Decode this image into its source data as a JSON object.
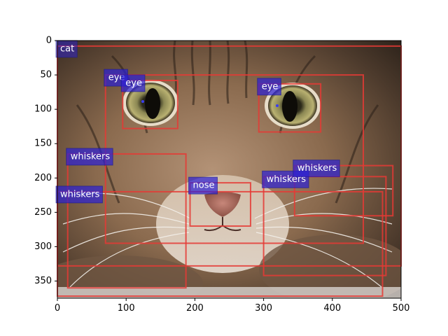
{
  "chart_data": {
    "type": "image-annotation",
    "image_subject": "tabby cat face close-up",
    "xlim": [
      0,
      500
    ],
    "ylim": [
      375,
      0
    ],
    "x_ticks": [
      0,
      100,
      200,
      300,
      400,
      500
    ],
    "y_ticks": [
      0,
      50,
      100,
      150,
      200,
      250,
      300,
      350
    ],
    "box_color": "#e53935",
    "label_bg_color": "#2b1fd6",
    "label_text_color": "#ffffff",
    "annotations": [
      {
        "label": "cat",
        "x": [
          0,
          500
        ],
        "y": [
          8,
          328
        ],
        "label_alpha": 0.5
      },
      {
        "label": "eye",
        "x": [
          70,
          445
        ],
        "y": [
          50,
          295
        ],
        "label_alpha": 0.7
      },
      {
        "label": "eye",
        "x": [
          95,
          175
        ],
        "y": [
          58,
          128
        ],
        "label_alpha": 0.7
      },
      {
        "label": "eye",
        "x": [
          293,
          383
        ],
        "y": [
          63,
          133
        ],
        "label_alpha": 0.7
      },
      {
        "label": "whiskers",
        "x": [
          15,
          187
        ],
        "y": [
          165,
          360
        ],
        "label_alpha": 0.7
      },
      {
        "label": "whiskers",
        "x": [
          0,
          473
        ],
        "y": [
          220,
          372
        ],
        "label_alpha": 0.7
      },
      {
        "label": "whiskers",
        "x": [
          300,
          478
        ],
        "y": [
          198,
          342
        ],
        "label_alpha": 0.7
      },
      {
        "label": "whiskers",
        "x": [
          345,
          488
        ],
        "y": [
          182,
          255
        ],
        "label_alpha": 0.7
      },
      {
        "label": "nose",
        "x": [
          193,
          281
        ],
        "y": [
          207,
          270
        ],
        "label_alpha": 0.7
      }
    ]
  }
}
